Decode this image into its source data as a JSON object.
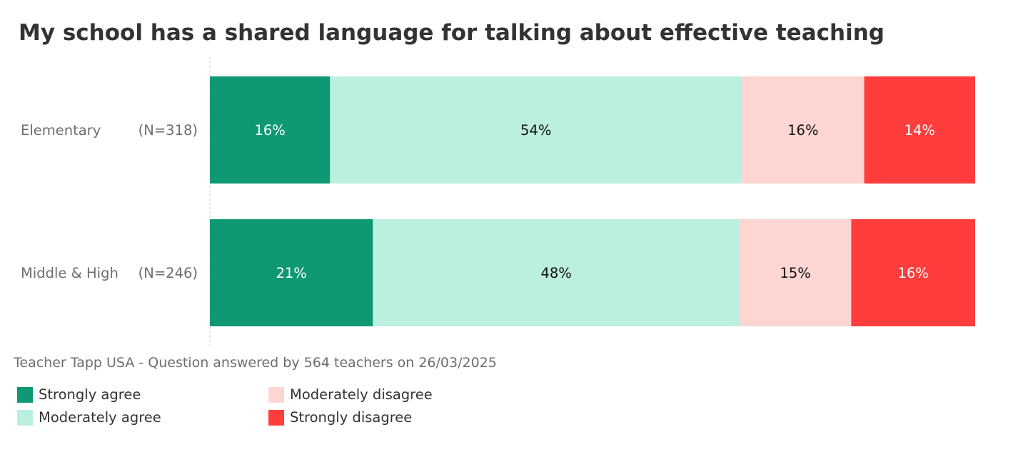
{
  "chart_data": {
    "type": "bar",
    "orientation": "horizontal-stacked-100",
    "title": "My school has a shared language for talking about effective teaching",
    "categories": [
      {
        "name": "Elementary",
        "n": "(N=318)"
      },
      {
        "name": "Middle & High",
        "n": "(N=246)"
      }
    ],
    "series": [
      {
        "name": "Strongly agree",
        "color": "#0e9874",
        "label_color": "#ffffff",
        "values": [
          15.7,
          21.3
        ],
        "labels": [
          "16%",
          "21%"
        ]
      },
      {
        "name": "Moderately agree",
        "color": "#bbefe0",
        "label_color": "#111111",
        "values": [
          53.8,
          47.9
        ],
        "labels": [
          "54%",
          "48%"
        ]
      },
      {
        "name": "Moderately disagree",
        "color": "#fdd6d3",
        "label_color": "#111111",
        "values": [
          16.0,
          14.6
        ],
        "labels": [
          "16%",
          "15%"
        ]
      },
      {
        "name": "Strongly disagree",
        "color": "#ff3d3d",
        "label_color": "#ffffff",
        "values": [
          14.5,
          16.2
        ],
        "labels": [
          "14%",
          "16%"
        ]
      }
    ],
    "xlim": [
      0,
      100
    ],
    "legend_position": "bottom-left"
  },
  "source": "Teacher Tapp USA - Question answered by 564 teachers on 26/03/2025"
}
